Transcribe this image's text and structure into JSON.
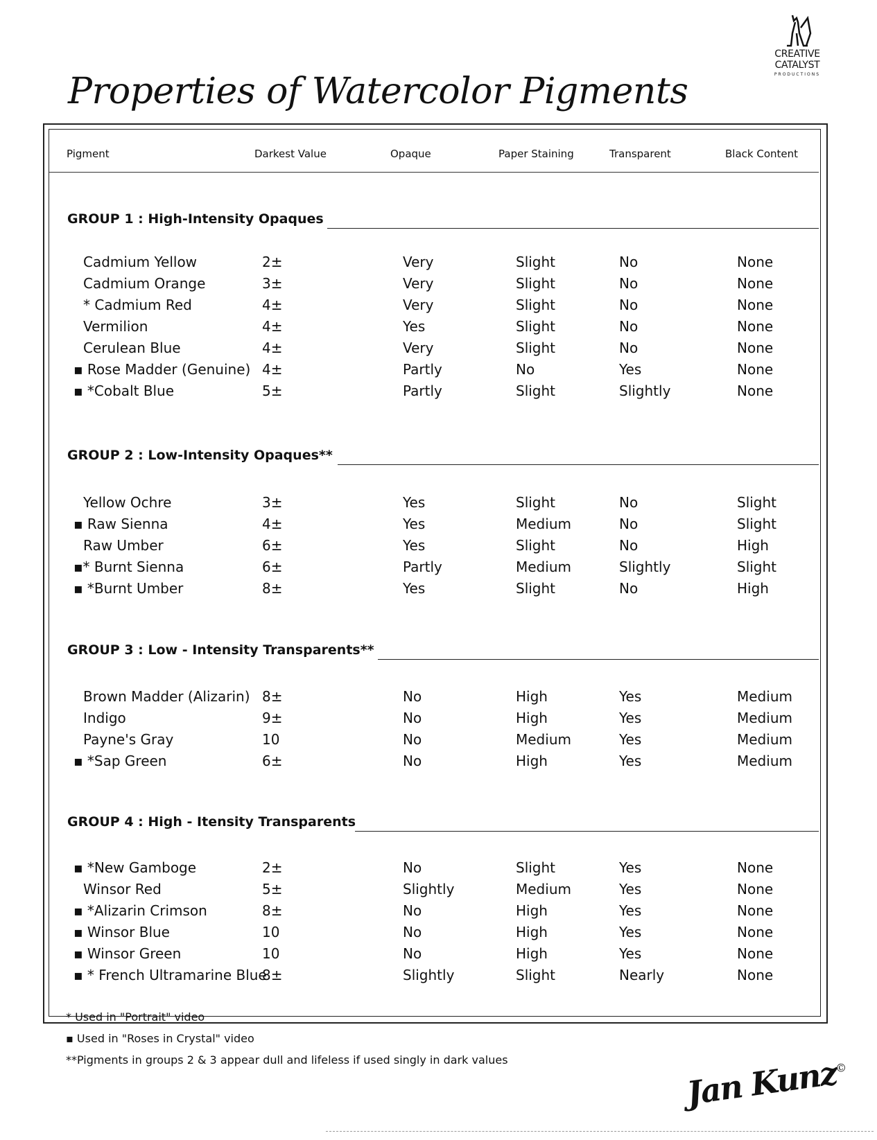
{
  "logo": {
    "line1": "CREATIVE",
    "line2": "CATALYST",
    "line3": "PRODUCTIONS"
  },
  "title": "Properties of Watercolor Pigments",
  "columns": [
    "Pigment",
    "Darkest Value",
    "Opaque",
    "Paper Staining",
    "Transparent",
    "Black Content"
  ],
  "groups": [
    {
      "heading": "GROUP 1 : High-Intensity Opaques",
      "rows": [
        [
          "Cadmium Yellow",
          "2±",
          "Very",
          "Slight",
          "No",
          "None"
        ],
        [
          "Cadmium Orange",
          "3±",
          "Very",
          "Slight",
          "No",
          "None"
        ],
        [
          " * Cadmium Red",
          "4±",
          "Very",
          "Slight",
          "No",
          "None"
        ],
        [
          "Vermilion",
          "4±",
          "Yes",
          "Slight",
          "No",
          "None"
        ],
        [
          "Cerulean Blue",
          "4±",
          "Very",
          "Slight",
          "No",
          "None"
        ],
        [
          "▪ Rose Madder (Genuine)",
          "4±",
          "Partly",
          "No",
          "Yes",
          "None"
        ],
        [
          "▪ *Cobalt Blue",
          "5±",
          "Partly",
          "Slight",
          "Slightly",
          "None"
        ]
      ]
    },
    {
      "heading": "GROUP 2 : Low-Intensity Opaques**",
      "rows": [
        [
          "Yellow  Ochre",
          "3±",
          "Yes",
          "Slight",
          "No",
          "Slight"
        ],
        [
          "▪ Raw Sienna",
          "4±",
          "Yes",
          "Medium",
          "No",
          "Slight"
        ],
        [
          "Raw Umber",
          "6±",
          "Yes",
          "Slight",
          "No",
          "High"
        ],
        [
          "▪* Burnt Sienna",
          "6±",
          "Partly",
          "Medium",
          "Slightly",
          "Slight"
        ],
        [
          "▪ *Burnt Umber",
          "8±",
          "Yes",
          "Slight",
          "No",
          "High"
        ]
      ]
    },
    {
      "heading": "GROUP 3 : Low - Intensity Transparents**",
      "rows": [
        [
          "Brown Madder (Alizarin)",
          "8±",
          "No",
          "High",
          "Yes",
          "Medium"
        ],
        [
          "Indigo",
          "9±",
          "No",
          "High",
          "Yes",
          "Medium"
        ],
        [
          "Payne's Gray",
          "10",
          "No",
          "Medium",
          "Yes",
          "Medium"
        ],
        [
          "▪ *Sap Green",
          "6±",
          "No",
          "High",
          "Yes",
          "Medium"
        ]
      ]
    },
    {
      "heading": "GROUP 4 : High - Itensity Transparents",
      "rows": [
        [
          "▪ *New Gamboge",
          "2±",
          "No",
          "Slight",
          "Yes",
          "None"
        ],
        [
          "Winsor Red",
          "5±",
          "Slightly",
          "Medium",
          "Yes",
          "None"
        ],
        [
          "▪ *Alizarin Crimson",
          "8±",
          "No",
          "High",
          "Yes",
          "None"
        ],
        [
          "▪ Winsor Blue",
          "10",
          "No",
          "High",
          "Yes",
          "None"
        ],
        [
          "▪ Winsor Green",
          "10",
          "No",
          "High",
          "Yes",
          "None"
        ],
        [
          "▪ * French Ultramarine Blue",
          "8±",
          "Slightly",
          "Slight",
          "Nearly",
          "None"
        ]
      ]
    }
  ],
  "footnotes": [
    "* Used in \"Portrait\" video",
    "▪ Used in \"Roses in Crystal\" video",
    "**Pigments in groups 2 & 3 appear dull and lifeless if used singly in dark values"
  ],
  "signature": "Jan Kunz",
  "copyright": "©"
}
